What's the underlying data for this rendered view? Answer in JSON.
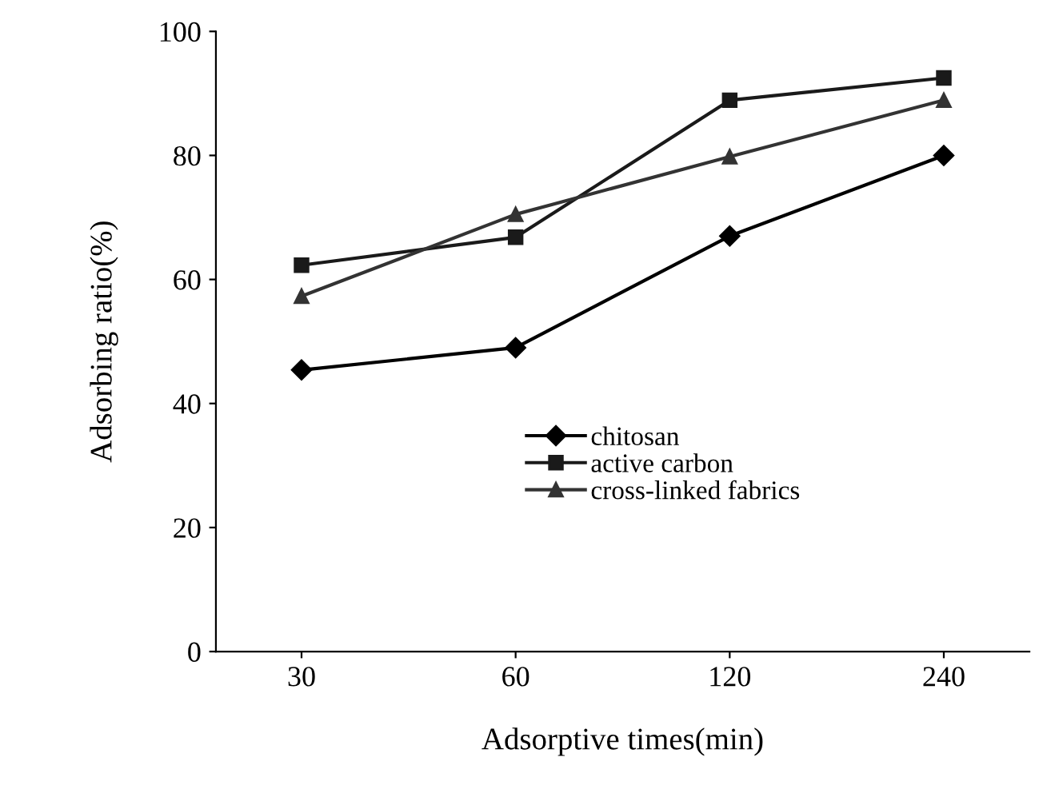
{
  "chart_data": {
    "type": "line",
    "xlabel": "Adsorptive times(min)",
    "ylabel": "Adsorbing ratio(%)",
    "categories": [
      "30",
      "60",
      "120",
      "240"
    ],
    "series": [
      {
        "name": "chitosan",
        "color": "#000000",
        "marker": "diamond",
        "values": [
          45.4,
          49,
          67,
          80
        ]
      },
      {
        "name": "active carbon",
        "color": "#1a1a1a",
        "marker": "square",
        "values": [
          62.3,
          66.8,
          88.9,
          92.5
        ]
      },
      {
        "name": "cross-linked fabrics",
        "color": "#333333",
        "marker": "triangle",
        "values": [
          57.3,
          70.5,
          79.8,
          88.9
        ]
      }
    ],
    "ylim": [
      0,
      100
    ],
    "yticks": [
      0,
      20,
      40,
      60,
      80,
      100
    ],
    "grid": false,
    "legend": "center",
    "line_style": "solid"
  }
}
